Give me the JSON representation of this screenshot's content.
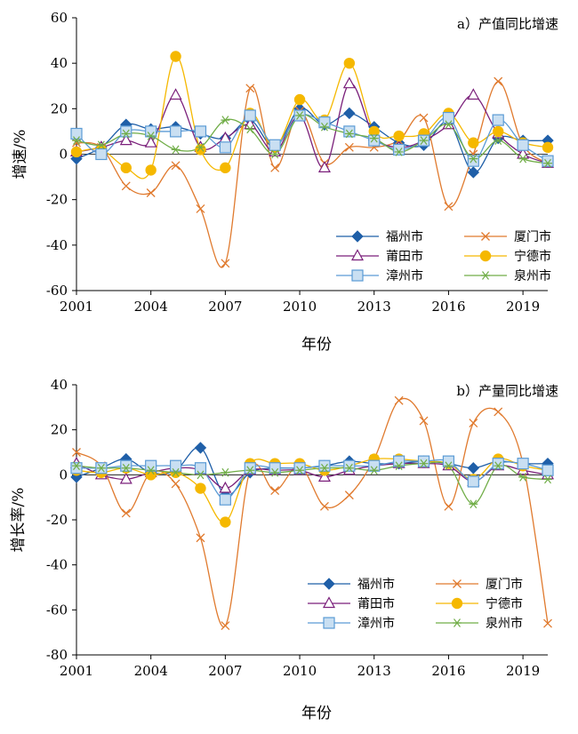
{
  "chart_data": [
    {
      "type": "line",
      "title": "a）产值同比增速",
      "xlabel": "年份",
      "ylabel": "增速/%",
      "ylim": [
        -60,
        60
      ],
      "xlim": [
        2001,
        2020
      ],
      "yticks": [
        "60",
        "40",
        "20",
        "0",
        "-20",
        "-40",
        "-60"
      ],
      "ytick_values": [
        60,
        40,
        20,
        0,
        -20,
        -40,
        -60
      ],
      "xticks": [
        "2001",
        "2004",
        "2007",
        "2010",
        "2013",
        "2016",
        "2019"
      ],
      "xtick_values": [
        2001,
        2004,
        2007,
        2010,
        2013,
        2016,
        2019
      ],
      "grid": false,
      "legend_position": "bottom-right",
      "x": [
        2001,
        2002,
        2003,
        2004,
        2005,
        2006,
        2007,
        2008,
        2009,
        2010,
        2011,
        2012,
        2013,
        2014,
        2015,
        2016,
        2017,
        2018,
        2019,
        2020
      ],
      "series": [
        {
          "name": "福州市",
          "color": "#1f5fa8",
          "marker": "diamond",
          "values": [
            -2,
            3,
            13,
            11,
            12,
            9,
            7,
            15,
            3,
            20,
            13,
            18,
            12,
            5,
            4,
            14,
            -8,
            7,
            6,
            6
          ]
        },
        {
          "name": "厦门市",
          "color": "#e07a2e",
          "marker": "x",
          "values": [
            5,
            3,
            -14,
            -17,
            -5,
            -24,
            -48,
            29,
            -6,
            19,
            -4,
            3,
            3,
            6,
            16,
            -23,
            0,
            32,
            4,
            -4
          ]
        },
        {
          "name": "莆田市",
          "color": "#7a1f7a",
          "marker": "triangle",
          "values": [
            1,
            3,
            6,
            5,
            26,
            3,
            7,
            13,
            1,
            17,
            -6,
            31,
            8,
            3,
            6,
            13,
            26,
            9,
            0,
            -4
          ]
        },
        {
          "name": "宁德市",
          "color": "#f5b800",
          "marker": "circle",
          "values": [
            1,
            2,
            -6,
            -7,
            43,
            2,
            -6,
            18,
            3,
            24,
            15,
            40,
            10,
            8,
            9,
            18,
            5,
            10,
            5,
            3
          ]
        },
        {
          "name": "漳州市",
          "color": "#5b9bd5",
          "marker": "square",
          "values": [
            9,
            0,
            10,
            10,
            10,
            10,
            3,
            17,
            4,
            17,
            14,
            10,
            6,
            2,
            6,
            16,
            -3,
            15,
            4,
            -3
          ]
        },
        {
          "name": "泉州市",
          "color": "#70ad47",
          "marker": "asterisk",
          "values": [
            6,
            4,
            9,
            8,
            2,
            3,
            15,
            11,
            0,
            17,
            12,
            9,
            7,
            1,
            6,
            13,
            -2,
            6,
            -2,
            -4
          ]
        }
      ]
    },
    {
      "type": "line",
      "title": "b）产量同比增速",
      "xlabel": "年份",
      "ylabel": "增长率/%",
      "ylim": [
        -80,
        40
      ],
      "xlim": [
        2001,
        2020
      ],
      "yticks": [
        "40",
        "20",
        "0",
        "-20",
        "-40",
        "-60",
        "-80"
      ],
      "ytick_values": [
        40,
        20,
        0,
        -20,
        -40,
        -60,
        -80
      ],
      "xticks": [
        "2001",
        "2004",
        "2007",
        "2010",
        "2013",
        "2016",
        "2019"
      ],
      "xtick_values": [
        2001,
        2004,
        2007,
        2010,
        2013,
        2016,
        2019
      ],
      "grid": false,
      "legend_position": "bottom-right",
      "x": [
        2001,
        2002,
        2003,
        2004,
        2005,
        2006,
        2007,
        2008,
        2009,
        2010,
        2011,
        2012,
        2013,
        2014,
        2015,
        2016,
        2017,
        2018,
        2019,
        2020
      ],
      "series": [
        {
          "name": "福州市",
          "color": "#1f5fa8",
          "marker": "diamond",
          "values": [
            -1,
            3,
            7,
            1,
            2,
            12,
            -9,
            1,
            3,
            3,
            4,
            6,
            5,
            5,
            6,
            5,
            3,
            6,
            5,
            5
          ]
        },
        {
          "name": "厦门市",
          "color": "#e07a2e",
          "marker": "x",
          "values": [
            10,
            4,
            -17,
            1,
            -4,
            -28,
            -67,
            2,
            -7,
            4,
            -14,
            -9,
            7,
            33,
            24,
            -14,
            23,
            28,
            5,
            -66
          ]
        },
        {
          "name": "莆田市",
          "color": "#7a1f7a",
          "marker": "triangle",
          "values": [
            5,
            0,
            -2,
            1,
            3,
            2,
            -6,
            2,
            2,
            2,
            -1,
            2,
            4,
            5,
            5,
            4,
            -3,
            4,
            2,
            0
          ]
        },
        {
          "name": "宁德市",
          "color": "#f5b800",
          "marker": "circle",
          "values": [
            2,
            1,
            3,
            0,
            1,
            -6,
            -21,
            5,
            5,
            5,
            2,
            4,
            7,
            7,
            6,
            5,
            -2,
            7,
            4,
            2
          ]
        },
        {
          "name": "漳州市",
          "color": "#5b9bd5",
          "marker": "square",
          "values": [
            3,
            3,
            4,
            4,
            4,
            3,
            -11,
            3,
            3,
            3,
            4,
            4,
            4,
            6,
            6,
            6,
            -3,
            5,
            5,
            2
          ]
        },
        {
          "name": "泉州市",
          "color": "#70ad47",
          "marker": "asterisk",
          "values": [
            4,
            3,
            3,
            2,
            1,
            0,
            1,
            2,
            1,
            2,
            3,
            3,
            2,
            4,
            5,
            4,
            -13,
            4,
            -1,
            -2
          ]
        }
      ]
    }
  ]
}
